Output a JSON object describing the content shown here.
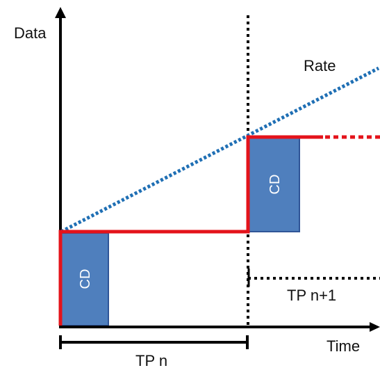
{
  "labels": {
    "y_axis": "Data",
    "x_axis": "Time",
    "rate": "Rate",
    "cd": "CD",
    "tp_n": "TP n",
    "tp_n1": "TP n+1"
  },
  "colors": {
    "axis": "#000000",
    "step_line": "#e4131b",
    "rate_line": "#1f6fb4",
    "cd_fill": "#4f7fbd",
    "cd_stroke": "#2f5597",
    "cd_text": "#ffffff"
  }
}
